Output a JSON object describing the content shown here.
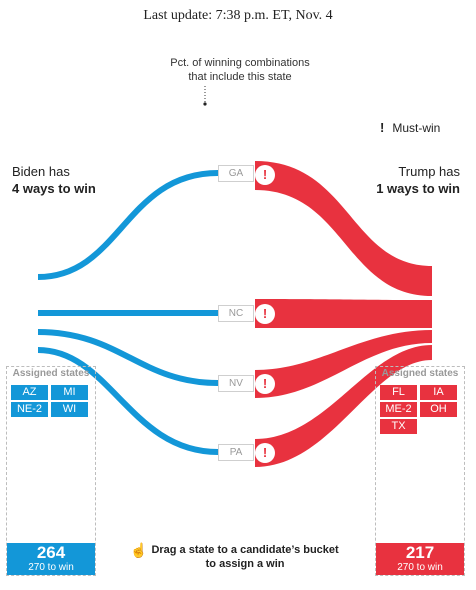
{
  "header": {
    "last_update": "Last update: 7:38 p.m. ET, Nov. 4"
  },
  "annotation": {
    "line1": "Pct. of winning combinations",
    "line2": "that include this state"
  },
  "legend": {
    "mustwin_icon": "!",
    "mustwin_label": "Must-win"
  },
  "biden": {
    "has": "Biden has",
    "ways": "4 ways to win",
    "color": "#1397d8"
  },
  "trump": {
    "has": "Trump has",
    "ways": "1 ways to win",
    "color": "#e8323f"
  },
  "states": [
    {
      "abbr": "GA",
      "mustwin_icon": "!"
    },
    {
      "abbr": "NC",
      "mustwin_icon": "!"
    },
    {
      "abbr": "NV",
      "mustwin_icon": "!"
    },
    {
      "abbr": "PA",
      "mustwin_icon": "!"
    }
  ],
  "biden_bucket": {
    "title": "Assigned states",
    "states": [
      "AZ",
      "MI",
      "NE-2",
      "WI"
    ],
    "votes": "264",
    "threshold": "270 to win"
  },
  "trump_bucket": {
    "title": "Assigned states",
    "states": [
      "FL",
      "IA",
      "ME-2",
      "OH",
      "TX"
    ],
    "votes": "217",
    "threshold": "270 to win"
  },
  "hint": {
    "icon": "hand-pointer-icon",
    "line1": "Drag a state to a candidate’s bucket",
    "line2": "to assign a win"
  }
}
